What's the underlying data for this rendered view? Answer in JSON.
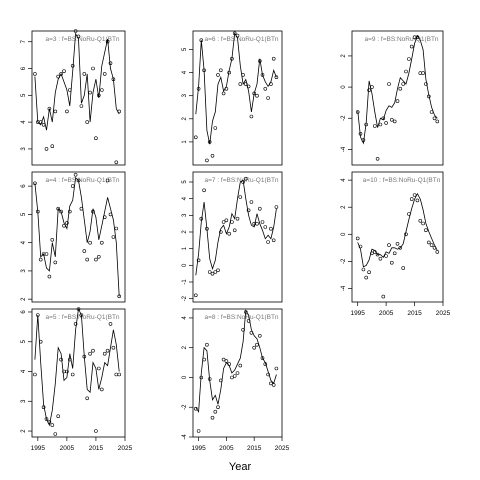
{
  "figure": {
    "xlabel": "Year"
  },
  "chart_data": [
    {
      "type": "line",
      "title": "a=3 : f=BS:NoRu-Q1(BTn",
      "xlim": [
        1993,
        2025
      ],
      "ylim": [
        2.4,
        7.4
      ],
      "yticks": [
        3,
        4,
        5,
        6,
        7
      ],
      "xticks": [],
      "x": [
        1994,
        1995,
        1996,
        1997,
        1998,
        1999,
        2000,
        2001,
        2002,
        2003,
        2004,
        2005,
        2006,
        2007,
        2008,
        2009,
        2010,
        2011,
        2012,
        2013,
        2014,
        2015,
        2016,
        2017,
        2018,
        2019,
        2020,
        2021,
        2022,
        2023
      ],
      "line": [
        5.7,
        4.0,
        3.9,
        4.2,
        3.7,
        4.5,
        4.0,
        5.1,
        5.6,
        5.8,
        5.5,
        5.2,
        4.6,
        5.9,
        7.3,
        7.1,
        4.7,
        5.0,
        5.8,
        4.0,
        5.1,
        5.6,
        4.9,
        6.1,
        6.6,
        7.1,
        6.0,
        5.6,
        4.5,
        4.3
      ],
      "points": [
        5.8,
        4.0,
        4.0,
        3.9,
        3.0,
        4.5,
        3.1,
        4.4,
        5.7,
        5.8,
        5.9,
        4.4,
        5.2,
        6.1,
        7.4,
        7.2,
        4.6,
        5.8,
        4.0,
        5.1,
        6.0,
        3.4,
        5.0,
        5.2,
        5.8,
        7.0,
        6.2,
        5.6,
        2.5,
        4.4
      ]
    },
    {
      "type": "line",
      "title": "a=6 : f=BS:NoRu-Q1(BTn",
      "xlim": [
        1993,
        2025
      ],
      "ylim": [
        0.0,
        5.8
      ],
      "yticks": [
        1,
        2,
        3,
        4,
        5
      ],
      "xticks": [],
      "x": [
        1994,
        1995,
        1996,
        1997,
        1998,
        1999,
        2000,
        2001,
        2002,
        2003,
        2004,
        2005,
        2006,
        2007,
        2008,
        2009,
        2010,
        2011,
        2012,
        2013,
        2014,
        2015,
        2016,
        2017,
        2018,
        2019,
        2020,
        2021,
        2022,
        2023
      ],
      "line": [
        2.2,
        3.4,
        5.4,
        4.1,
        1.5,
        0.9,
        1.9,
        2.3,
        3.5,
        3.8,
        3.2,
        3.4,
        4.1,
        4.6,
        5.7,
        5.5,
        4.3,
        3.5,
        3.7,
        3.2,
        2.3,
        3.1,
        3.5,
        4.6,
        3.9,
        3.6,
        3.4,
        3.6,
        4.1,
        3.8
      ],
      "points": [
        1.2,
        3.3,
        5.4,
        4.1,
        0.2,
        1.0,
        0.4,
        1.6,
        3.9,
        4.1,
        3.1,
        3.3,
        4.0,
        4.6,
        5.7,
        5.6,
        3.5,
        3.9,
        3.5,
        3.4,
        2.1,
        3.1,
        3.0,
        4.5,
        3.9,
        3.3,
        2.9,
        3.5,
        4.6,
        3.8
      ]
    },
    {
      "type": "line",
      "title": "a=9 : f=BS:NoRu-Q1(BTn",
      "xlim": [
        1993,
        2025
      ],
      "ylim": [
        -5.0,
        3.6
      ],
      "yticks": [
        -4,
        -2,
        0,
        2
      ],
      "xticks": [],
      "x": [
        1995,
        1996,
        1997,
        1998,
        1999,
        2000,
        2001,
        2002,
        2003,
        2004,
        2005,
        2006,
        2007,
        2008,
        2009,
        2010,
        2011,
        2012,
        2013,
        2014,
        2015,
        2016,
        2017,
        2018,
        2019,
        2020,
        2021,
        2022,
        2023
      ],
      "line": [
        -1.5,
        -3.2,
        -3.6,
        -2.3,
        0.4,
        -0.4,
        -1.6,
        -2.6,
        -2.0,
        -2.1,
        -1.5,
        -1.2,
        -1.3,
        -1.0,
        -0.1,
        0.6,
        0.4,
        0.2,
        0.9,
        1.8,
        2.8,
        3.3,
        3.0,
        2.4,
        0.5,
        -0.5,
        -1.3,
        -1.8,
        -2.0
      ],
      "points": [
        -1.6,
        -3.0,
        -3.4,
        -2.4,
        -0.2,
        0.0,
        -2.5,
        -4.6,
        -2.4,
        -2.0,
        -2.3,
        0.2,
        -2.1,
        -2.2,
        -0.9,
        -0.1,
        0.2,
        1.0,
        1.8,
        2.6,
        3.2,
        3.2,
        0.9,
        0.9,
        0.2,
        -0.6,
        -1.6,
        -2.0,
        -2.2
      ]
    },
    {
      "type": "line",
      "title": "a=4 : f=BS:NoRu-Q1(BTn",
      "xlim": [
        1993,
        2025
      ],
      "ylim": [
        1.9,
        6.5
      ],
      "yticks": [
        2,
        3,
        4,
        5,
        6
      ],
      "xticks": [],
      "x": [
        1994,
        1995,
        1996,
        1997,
        1998,
        1999,
        2000,
        2001,
        2002,
        2003,
        2004,
        2005,
        2006,
        2007,
        2008,
        2009,
        2010,
        2011,
        2012,
        2013,
        2014,
        2015,
        2016,
        2017,
        2018,
        2019,
        2020,
        2021,
        2022,
        2023
      ],
      "line": [
        6.1,
        5.1,
        3.5,
        3.6,
        3.1,
        3.0,
        4.0,
        3.5,
        5.2,
        5.1,
        4.7,
        4.5,
        5.3,
        5.5,
        6.3,
        6.2,
        5.6,
        4.8,
        4.0,
        4.4,
        5.2,
        4.9,
        4.1,
        4.6,
        5.1,
        5.6,
        5.2,
        4.8,
        4.0,
        2.1
      ],
      "points": [
        6.1,
        5.1,
        3.4,
        3.6,
        3.6,
        2.8,
        4.1,
        3.3,
        5.2,
        5.1,
        4.6,
        4.7,
        5.1,
        6.0,
        6.4,
        6.2,
        5.2,
        3.7,
        3.4,
        4.0,
        5.1,
        3.4,
        3.5,
        4.0,
        4.9,
        6.2,
        5.0,
        4.2,
        4.5,
        2.1
      ]
    },
    {
      "type": "line",
      "title": "a=7 : f=BS:NoRu-Q1(BTn",
      "xlim": [
        1993,
        2025
      ],
      "ylim": [
        -2.2,
        5.6
      ],
      "yticks": [
        -2,
        -1,
        0,
        1,
        2,
        3,
        4,
        5
      ],
      "xticks": [],
      "x": [
        1994,
        1995,
        1996,
        1997,
        1998,
        1999,
        2000,
        2001,
        2002,
        2003,
        2004,
        2005,
        2006,
        2007,
        2008,
        2009,
        2010,
        2011,
        2012,
        2013,
        2014,
        2015,
        2016,
        2017,
        2018,
        2019,
        2020,
        2021,
        2022,
        2023
      ],
      "line": [
        -0.6,
        0.7,
        2.6,
        3.8,
        2.2,
        0.4,
        -0.2,
        0.3,
        1.4,
        2.2,
        2.4,
        1.9,
        2.3,
        3.1,
        2.8,
        4.0,
        5.0,
        5.1,
        4.0,
        3.0,
        2.4,
        2.3,
        3.1,
        2.5,
        2.1,
        1.6,
        1.8,
        1.6,
        2.3,
        3.4
      ],
      "points": [
        -1.8,
        0.3,
        2.8,
        4.5,
        2.2,
        -0.4,
        -0.5,
        -0.4,
        -0.3,
        2.0,
        2.6,
        2.7,
        1.9,
        2.6,
        2.1,
        2.8,
        4.1,
        5.0,
        5.2,
        3.3,
        3.8,
        2.5,
        2.5,
        3.4,
        2.6,
        2.3,
        1.4,
        2.2,
        1.5,
        3.5
      ]
    },
    {
      "type": "line",
      "title": "a=10 : f=BS:NoRu-Q1(BTn",
      "xlim": [
        1993,
        2025
      ],
      "ylim": [
        -5.0,
        4.6
      ],
      "yticks": [
        -4,
        -2,
        0,
        2,
        4
      ],
      "xticks": [
        1995,
        2005,
        2015,
        2025
      ],
      "x": [
        1995,
        1996,
        1997,
        1998,
        1999,
        2000,
        2001,
        2002,
        2003,
        2004,
        2005,
        2006,
        2007,
        2008,
        2009,
        2010,
        2011,
        2012,
        2013,
        2014,
        2015,
        2016,
        2017,
        2018,
        2019,
        2020,
        2021,
        2022,
        2023
      ],
      "line": [
        -0.6,
        -1.1,
        -2.4,
        -2.3,
        -1.9,
        -1.1,
        -1.2,
        -1.5,
        -1.5,
        -1.7,
        -1.3,
        -1.4,
        -1.0,
        -1.0,
        -1.1,
        -1.0,
        -0.7,
        0.2,
        1.1,
        1.9,
        2.6,
        3.0,
        2.6,
        1.8,
        0.8,
        0.2,
        -0.3,
        -0.8,
        -1.2
      ],
      "points": [
        -0.3,
        -0.9,
        -2.6,
        -3.2,
        -2.8,
        -1.4,
        -1.3,
        -1.5,
        -1.8,
        -4.6,
        -1.6,
        -0.8,
        -2.1,
        -1.4,
        -0.7,
        -1.0,
        -2.5,
        0.0,
        1.5,
        2.6,
        2.9,
        2.5,
        1.0,
        0.8,
        0.3,
        -0.6,
        -0.8,
        -1.0,
        -1.3
      ]
    },
    {
      "type": "line",
      "title": "a=5 : f=BS:NoRu-Q1(BTn",
      "xlim": [
        1993,
        2025
      ],
      "ylim": [
        1.8,
        6.1
      ],
      "yticks": [
        2,
        3,
        4,
        5,
        6
      ],
      "xticks": [
        1995,
        2005,
        2015,
        2025
      ],
      "x": [
        1994,
        1995,
        1996,
        1997,
        1998,
        1999,
        2000,
        2001,
        2002,
        2003,
        2004,
        2005,
        2006,
        2007,
        2008,
        2009,
        2010,
        2011,
        2012,
        2013,
        2014,
        2015,
        2016,
        2017,
        2018,
        2019,
        2020,
        2021,
        2022,
        2023
      ],
      "line": [
        4.4,
        5.9,
        4.3,
        2.9,
        2.4,
        2.2,
        2.7,
        3.6,
        4.8,
        4.6,
        3.7,
        3.8,
        4.6,
        4.1,
        5.4,
        6.1,
        5.9,
        4.5,
        3.4,
        3.3,
        4.3,
        4.1,
        3.4,
        3.8,
        4.3,
        4.2,
        4.8,
        5.4,
        4.9,
        4.0
      ],
      "points": [
        3.9,
        5.9,
        5.0,
        2.8,
        2.4,
        2.3,
        2.2,
        1.9,
        2.5,
        4.4,
        4.0,
        4.0,
        4.4,
        3.9,
        5.6,
        6.1,
        5.9,
        4.5,
        3.1,
        4.6,
        4.7,
        2.0,
        4.1,
        3.4,
        4.6,
        4.7,
        5.6,
        4.8,
        3.9,
        3.9
      ]
    },
    {
      "type": "line",
      "title": "a=8 : f=BS:NoRu-Q1(BTn",
      "xlim": [
        1993,
        2025
      ],
      "ylim": [
        -4.0,
        4.6
      ],
      "yticks": [
        -4,
        -2,
        0,
        2,
        4
      ],
      "xticks": [
        1995,
        2005,
        2015,
        2025
      ],
      "x": [
        1994,
        1995,
        1996,
        1997,
        1998,
        1999,
        2000,
        2001,
        2002,
        2003,
        2004,
        2005,
        2006,
        2007,
        2008,
        2009,
        2010,
        2011,
        2012,
        2013,
        2014,
        2015,
        2016,
        2017,
        2018,
        2019,
        2020,
        2021,
        2022,
        2023
      ],
      "line": [
        -2.0,
        -2.3,
        0.3,
        2.0,
        1.8,
        -0.2,
        -1.5,
        -1.2,
        -1.8,
        -0.8,
        0.6,
        1.0,
        0.8,
        0.3,
        0.5,
        0.9,
        1.3,
        2.4,
        4.5,
        4.2,
        3.2,
        2.8,
        2.6,
        2.0,
        1.3,
        1.0,
        0.4,
        -0.2,
        -0.4,
        0.2
      ],
      "points": [
        -2.1,
        -3.6,
        0.0,
        1.2,
        2.2,
        -0.1,
        -2.7,
        -2.3,
        -2.0,
        -0.2,
        1.2,
        1.1,
        0.9,
        0.0,
        0.1,
        0.3,
        0.8,
        3.2,
        4.4,
        3.8,
        3.0,
        2.0,
        2.2,
        2.8,
        1.3,
        0.9,
        0.2,
        -0.4,
        -0.5,
        0.6
      ]
    }
  ]
}
